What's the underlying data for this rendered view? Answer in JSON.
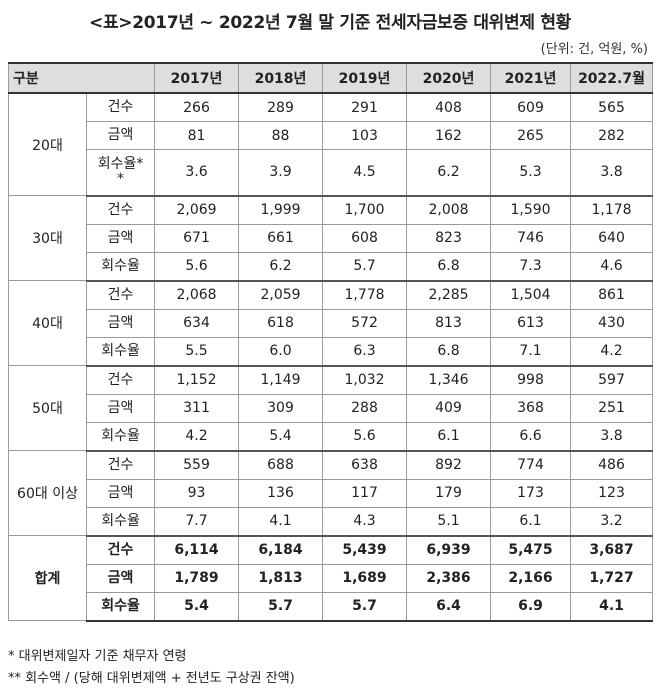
{
  "title": "<표>2017년 ~ 2022년 7월 말 기준 전세자금보증 대위변제 현황",
  "unit": "(단위: 건, 억원, %)",
  "table": {
    "header": [
      "구분",
      "2017년",
      "2018년",
      "2019년",
      "2020년",
      "2021년",
      "2022.7월"
    ],
    "groups": [
      {
        "name": "20대",
        "rows": [
          {
            "metric": "건수",
            "values": [
              "266",
              "289",
              "291",
              "408",
              "609",
              "565"
            ]
          },
          {
            "metric": "금액",
            "values": [
              "81",
              "88",
              "103",
              "162",
              "265",
              "282"
            ]
          },
          {
            "metric": "회수율*\n*",
            "values": [
              "3.6",
              "3.9",
              "4.5",
              "6.2",
              "5.3",
              "3.8"
            ]
          }
        ]
      },
      {
        "name": "30대",
        "rows": [
          {
            "metric": "건수",
            "values": [
              "2,069",
              "1,999",
              "1,700",
              "2,008",
              "1,590",
              "1,178"
            ]
          },
          {
            "metric": "금액",
            "values": [
              "671",
              "661",
              "608",
              "823",
              "746",
              "640"
            ]
          },
          {
            "metric": "회수율",
            "values": [
              "5.6",
              "6.2",
              "5.7",
              "6.8",
              "7.3",
              "4.6"
            ]
          }
        ]
      },
      {
        "name": "40대",
        "rows": [
          {
            "metric": "건수",
            "values": [
              "2,068",
              "2,059",
              "1,778",
              "2,285",
              "1,504",
              "861"
            ]
          },
          {
            "metric": "금액",
            "values": [
              "634",
              "618",
              "572",
              "813",
              "613",
              "430"
            ]
          },
          {
            "metric": "회수율",
            "values": [
              "5.5",
              "6.0",
              "6.3",
              "6.8",
              "7.1",
              "4.2"
            ]
          }
        ]
      },
      {
        "name": "50대",
        "rows": [
          {
            "metric": "건수",
            "values": [
              "1,152",
              "1,149",
              "1,032",
              "1,346",
              "998",
              "597"
            ]
          },
          {
            "metric": "금액",
            "values": [
              "311",
              "309",
              "288",
              "409",
              "368",
              "251"
            ]
          },
          {
            "metric": "회수율",
            "values": [
              "4.2",
              "5.4",
              "5.6",
              "6.1",
              "6.6",
              "3.8"
            ]
          }
        ]
      },
      {
        "name": "60대 이상",
        "rows": [
          {
            "metric": "건수",
            "values": [
              "559",
              "688",
              "638",
              "892",
              "774",
              "486"
            ]
          },
          {
            "metric": "금액",
            "values": [
              "93",
              "136",
              "117",
              "179",
              "173",
              "123"
            ]
          },
          {
            "metric": "회수율",
            "values": [
              "7.7",
              "4.1",
              "4.3",
              "5.1",
              "6.1",
              "3.2"
            ]
          }
        ]
      },
      {
        "name": "합계",
        "rows": [
          {
            "metric": "건수",
            "values": [
              "6,114",
              "6,184",
              "5,439",
              "6,939",
              "5,475",
              "3,687"
            ]
          },
          {
            "metric": "금액",
            "values": [
              "1,789",
              "1,813",
              "1,689",
              "2,386",
              "2,166",
              "1,727"
            ]
          },
          {
            "metric": "회수율",
            "values": [
              "5.4",
              "5.7",
              "5.7",
              "6.4",
              "6.9",
              "4.1"
            ]
          }
        ]
      }
    ]
  },
  "notes": [
    "* 대위변제일자 기준 채무자 연령",
    "** 회수액 / (당해 대위변제액 + 전년도 구상권 잔액)"
  ]
}
